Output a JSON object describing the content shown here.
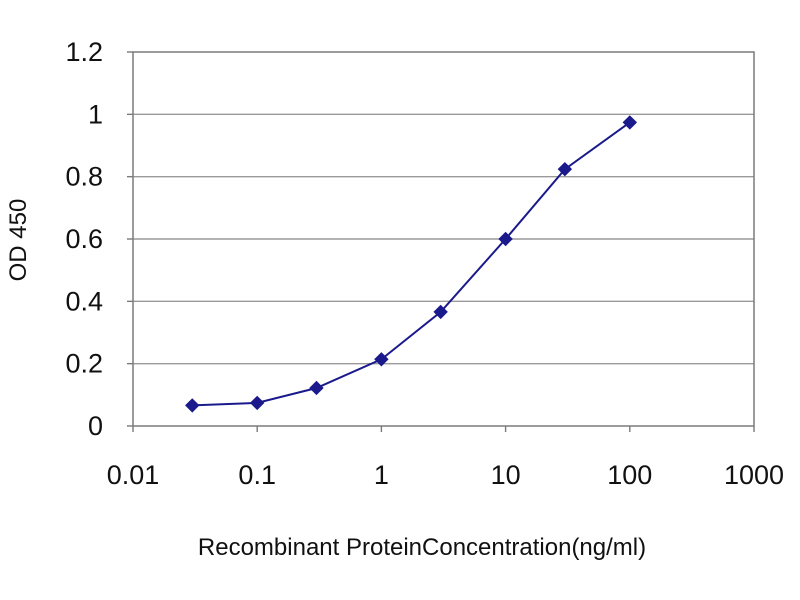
{
  "chart_data": {
    "type": "line",
    "title": "",
    "xlabel": "Recombinant ProteinConcentration(ng/ml)",
    "ylabel": "OD 450",
    "x_scale": "log",
    "xlim": [
      0.01,
      1000
    ],
    "ylim": [
      0,
      1.2
    ],
    "x_ticks": [
      "0.01",
      "0.1",
      "1",
      "10",
      "100",
      "1000"
    ],
    "y_ticks": [
      "0",
      "0.2",
      "0.4",
      "0.6",
      "0.8",
      "1",
      "1.2"
    ],
    "grid": "horizontal",
    "legend": "none",
    "series": [
      {
        "x": [
          0.03,
          0.1,
          0.3,
          1,
          3,
          10,
          30,
          100
        ],
        "y": [
          0.066,
          0.074,
          0.122,
          0.214,
          0.366,
          0.6,
          0.824,
          0.974
        ],
        "color": "#1a1a8c"
      }
    ]
  }
}
